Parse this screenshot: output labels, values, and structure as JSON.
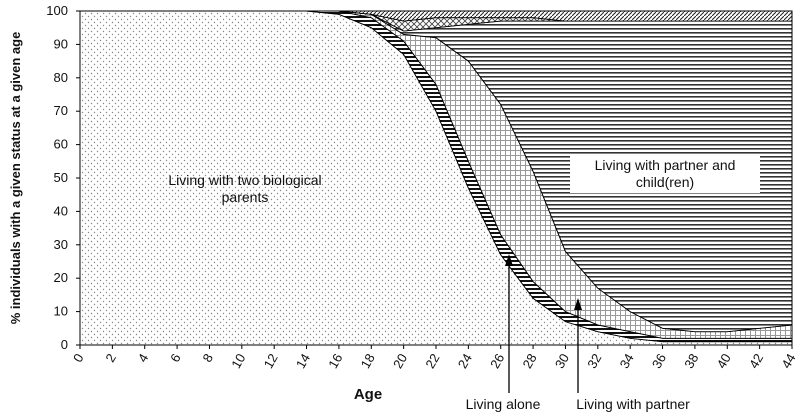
{
  "chart_data": {
    "type": "stacked-area",
    "x_label": "Age",
    "y_label": "% individuals with a given status at a given age",
    "x": [
      0,
      2,
      4,
      6,
      8,
      10,
      12,
      14,
      16,
      18,
      20,
      22,
      24,
      26,
      28,
      30,
      32,
      34,
      36,
      38,
      40,
      42,
      44
    ],
    "xlim": [
      0,
      44
    ],
    "xticks": [
      0,
      2,
      4,
      6,
      8,
      10,
      12,
      14,
      16,
      18,
      20,
      22,
      24,
      26,
      28,
      30,
      32,
      34,
      36,
      38,
      40,
      42,
      44
    ],
    "ylim": [
      0,
      100
    ],
    "yticks": [
      0,
      10,
      20,
      30,
      40,
      50,
      60,
      70,
      80,
      90,
      100
    ],
    "series": [
      {
        "name": "Living with two biological parents",
        "pattern": "dots",
        "values": [
          100,
          100,
          100,
          100,
          100,
          100,
          100,
          100,
          99,
          95,
          87,
          70,
          47,
          27,
          14,
          7,
          4,
          2,
          1,
          1,
          1,
          1,
          1
        ]
      },
      {
        "name": "Living alone",
        "pattern": "black-stripes",
        "values": [
          0,
          0,
          0,
          0,
          0,
          0,
          0,
          0,
          1,
          3,
          4,
          8,
          8,
          6,
          5,
          3,
          2,
          2,
          1,
          1,
          1,
          1,
          1
        ]
      },
      {
        "name": "Living with partner",
        "pattern": "grid",
        "values": [
          0,
          0,
          0,
          0,
          0,
          0,
          0,
          0,
          0,
          1,
          2,
          14,
          30,
          39,
          33,
          18,
          11,
          6,
          3,
          2,
          2,
          3,
          4
        ]
      },
      {
        "name": "Living with partner and child(ren)",
        "pattern": "h-lines",
        "values": [
          0,
          0,
          0,
          0,
          0,
          0,
          0,
          0,
          0,
          0,
          1,
          3,
          11,
          25,
          45,
          69,
          80,
          87,
          92,
          93,
          93,
          92,
          91
        ]
      },
      {
        "pattern": "crosshatch",
        "values": [
          0,
          0,
          0,
          0,
          0,
          0,
          0,
          0,
          0,
          0,
          3,
          3,
          2,
          1,
          1,
          0,
          0,
          0,
          0,
          0,
          0,
          0,
          0
        ]
      },
      {
        "pattern": "diagonal",
        "values": [
          0,
          0,
          0,
          0,
          0,
          0,
          0,
          0,
          0,
          1,
          3,
          2,
          2,
          2,
          2,
          3,
          3,
          3,
          3,
          3,
          3,
          3,
          3
        ]
      }
    ]
  }
}
